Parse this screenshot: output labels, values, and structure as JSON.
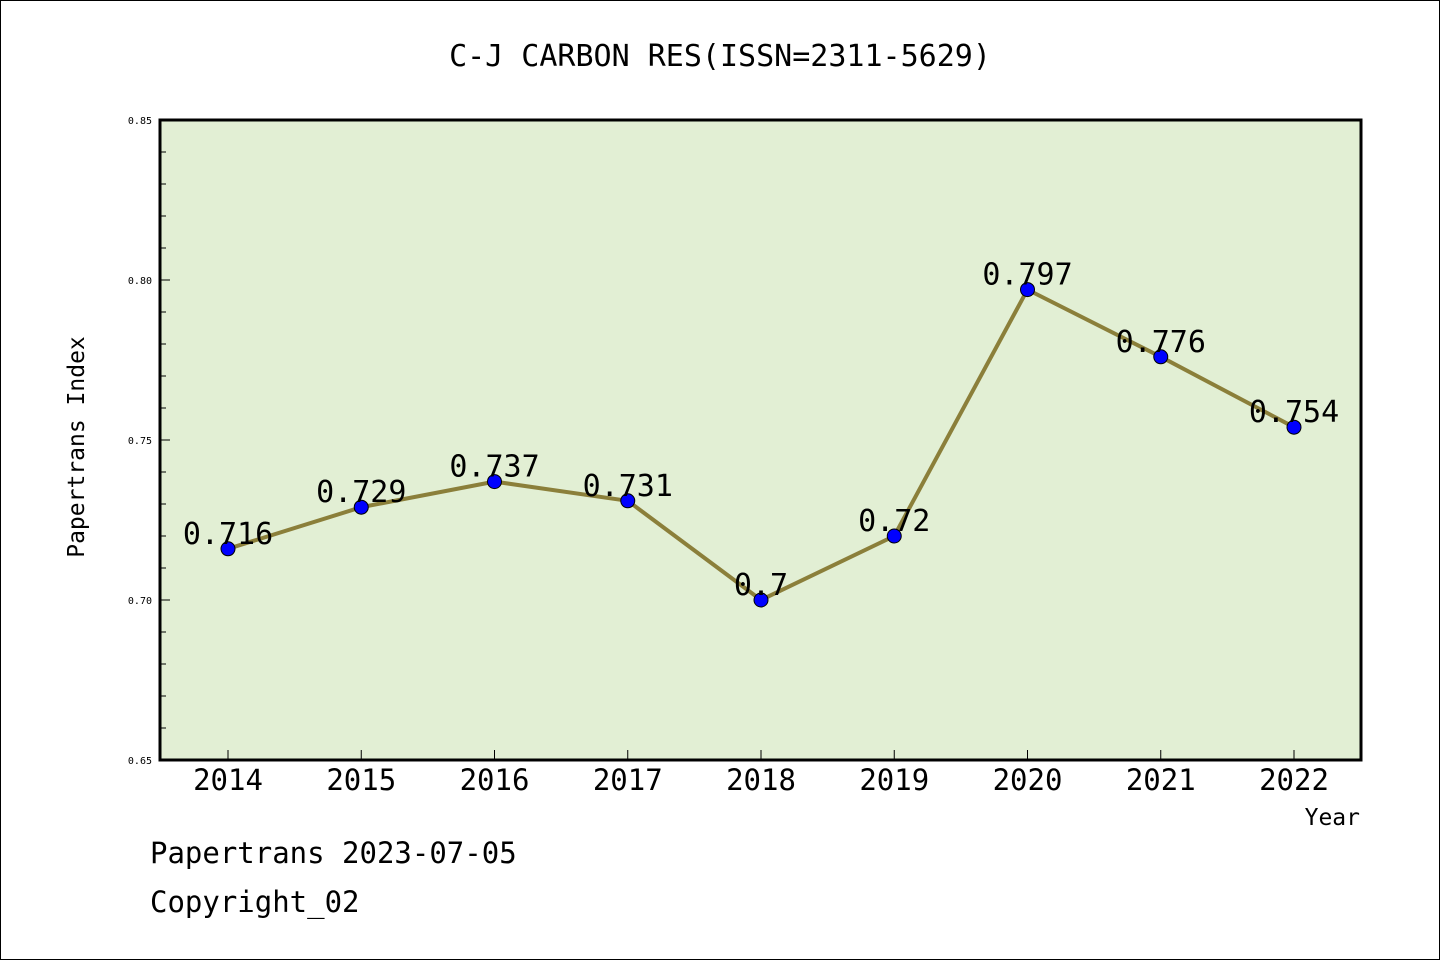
{
  "chart_data": {
    "type": "line",
    "title": "C-J CARBON RES(ISSN=2311-5629)",
    "xlabel": "Year",
    "ylabel": "Papertrans Index",
    "categories": [
      "2014",
      "2015",
      "2016",
      "2017",
      "2018",
      "2019",
      "2020",
      "2021",
      "2022"
    ],
    "values": [
      0.716,
      0.729,
      0.737,
      0.731,
      0.7,
      0.72,
      0.797,
      0.776,
      0.754
    ],
    "data_labels": [
      "0.716",
      "0.729",
      "0.737",
      "0.731",
      "0.7",
      "0.72",
      "0.797",
      "0.776",
      "0.754"
    ],
    "ylim": [
      0.65,
      0.85
    ],
    "yticks": [
      0.65,
      0.7,
      0.75,
      0.8,
      0.85
    ],
    "ytick_labels": [
      "0.65",
      "0.70",
      "0.75",
      "0.80",
      "0.85"
    ],
    "grid": false,
    "legend": "none",
    "colors": {
      "plot_background": "#e2efd4",
      "line": "#8b7f3a",
      "marker": "#0000ff"
    }
  },
  "footer": {
    "line1": "Papertrans 2023-07-05",
    "line2": "Copyright_02"
  }
}
